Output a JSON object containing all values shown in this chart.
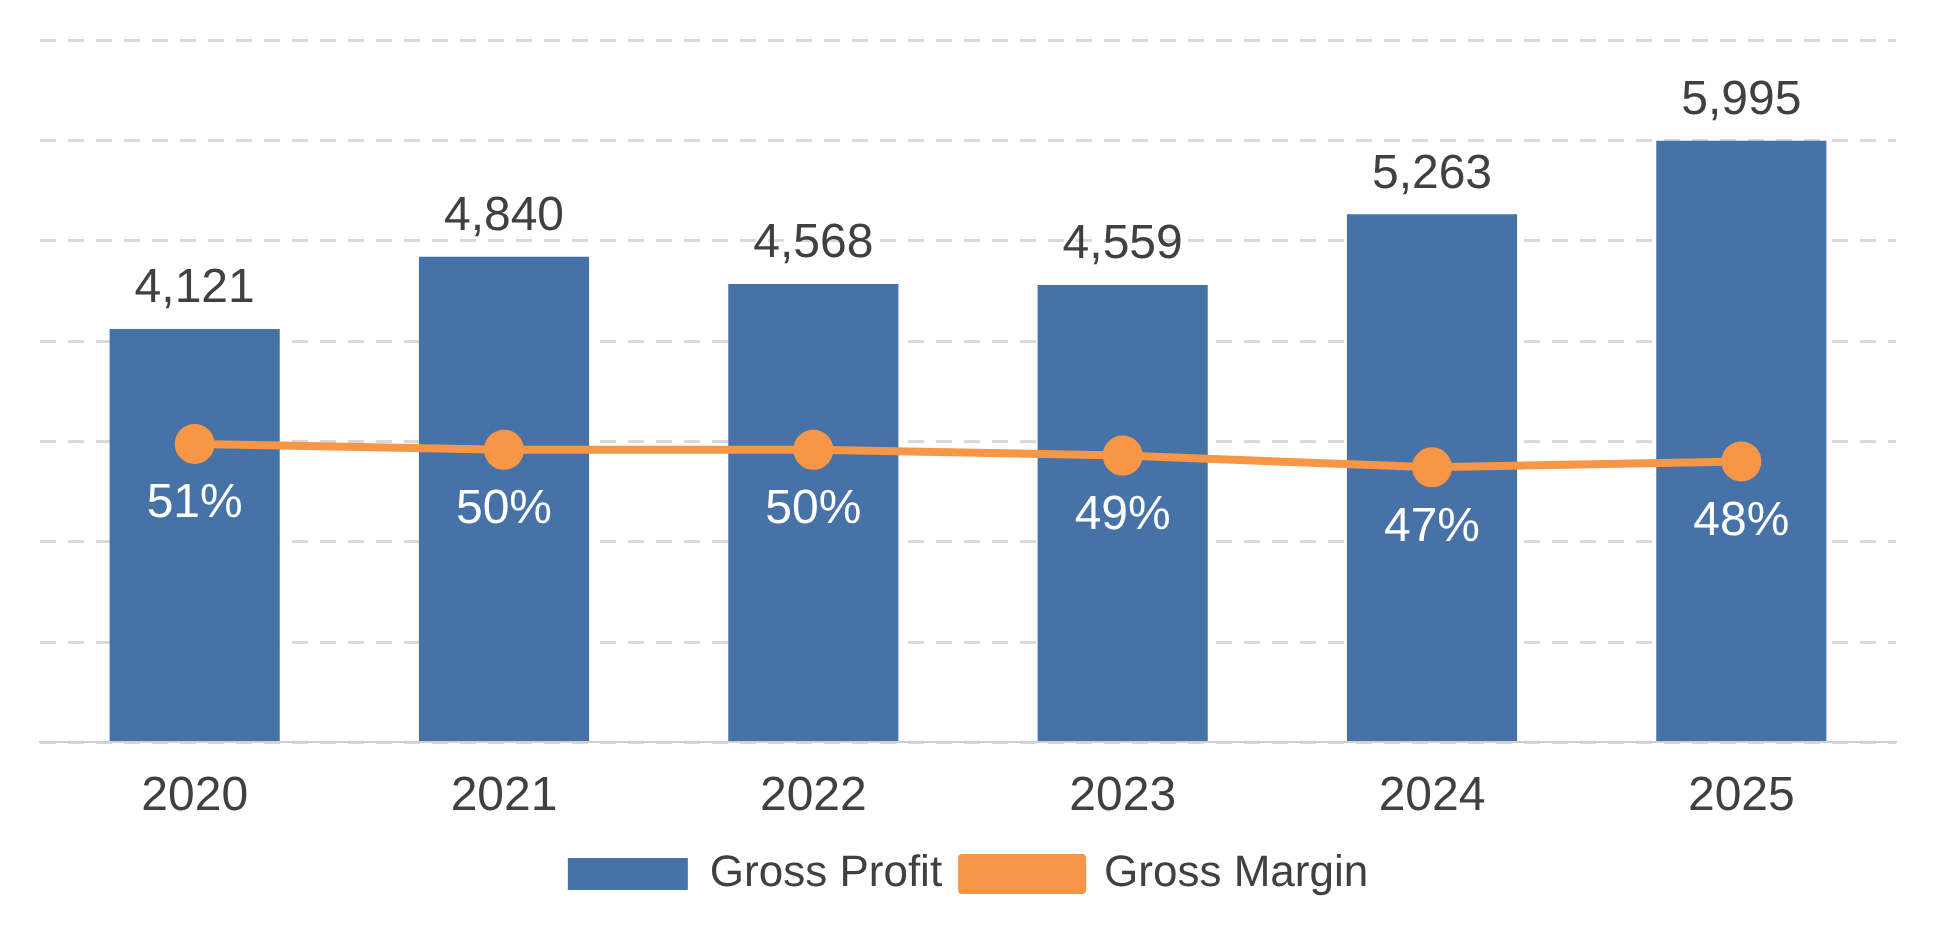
{
  "chart_data": {
    "type": "bar",
    "categories": [
      "2020",
      "2021",
      "2022",
      "2023",
      "2024",
      "2025"
    ],
    "series": [
      {
        "name": "Gross Profit",
        "type": "bar",
        "color": "#4672a8",
        "values": [
          4121,
          4840,
          4568,
          4559,
          5263,
          5995
        ],
        "value_labels": [
          "4,121",
          "4,840",
          "4,568",
          "4,559",
          "5,263",
          "5,995"
        ]
      },
      {
        "name": "Gross Margin",
        "type": "line",
        "axis": "y2",
        "color": "#f79646",
        "values": [
          51,
          50,
          50,
          49,
          47,
          48
        ],
        "value_labels": [
          "51%",
          "50%",
          "50%",
          "49%",
          "47%",
          "48%"
        ]
      }
    ],
    "ylim": [
      0,
      7000
    ],
    "yticks": [
      {
        "value": 0,
        "label": null
      },
      {
        "value": 1000,
        "label": null
      },
      {
        "value": 2000,
        "label": null
      },
      {
        "value": 3000,
        "label": null
      },
      {
        "value": 4000,
        "label": null
      },
      {
        "value": 5000,
        "label": null
      },
      {
        "value": 6000,
        "label": null
      },
      {
        "value": 7000,
        "label": null
      }
    ],
    "tick_labels": "x",
    "grid": "y",
    "legend": "bottom",
    "marker": "circle"
  }
}
